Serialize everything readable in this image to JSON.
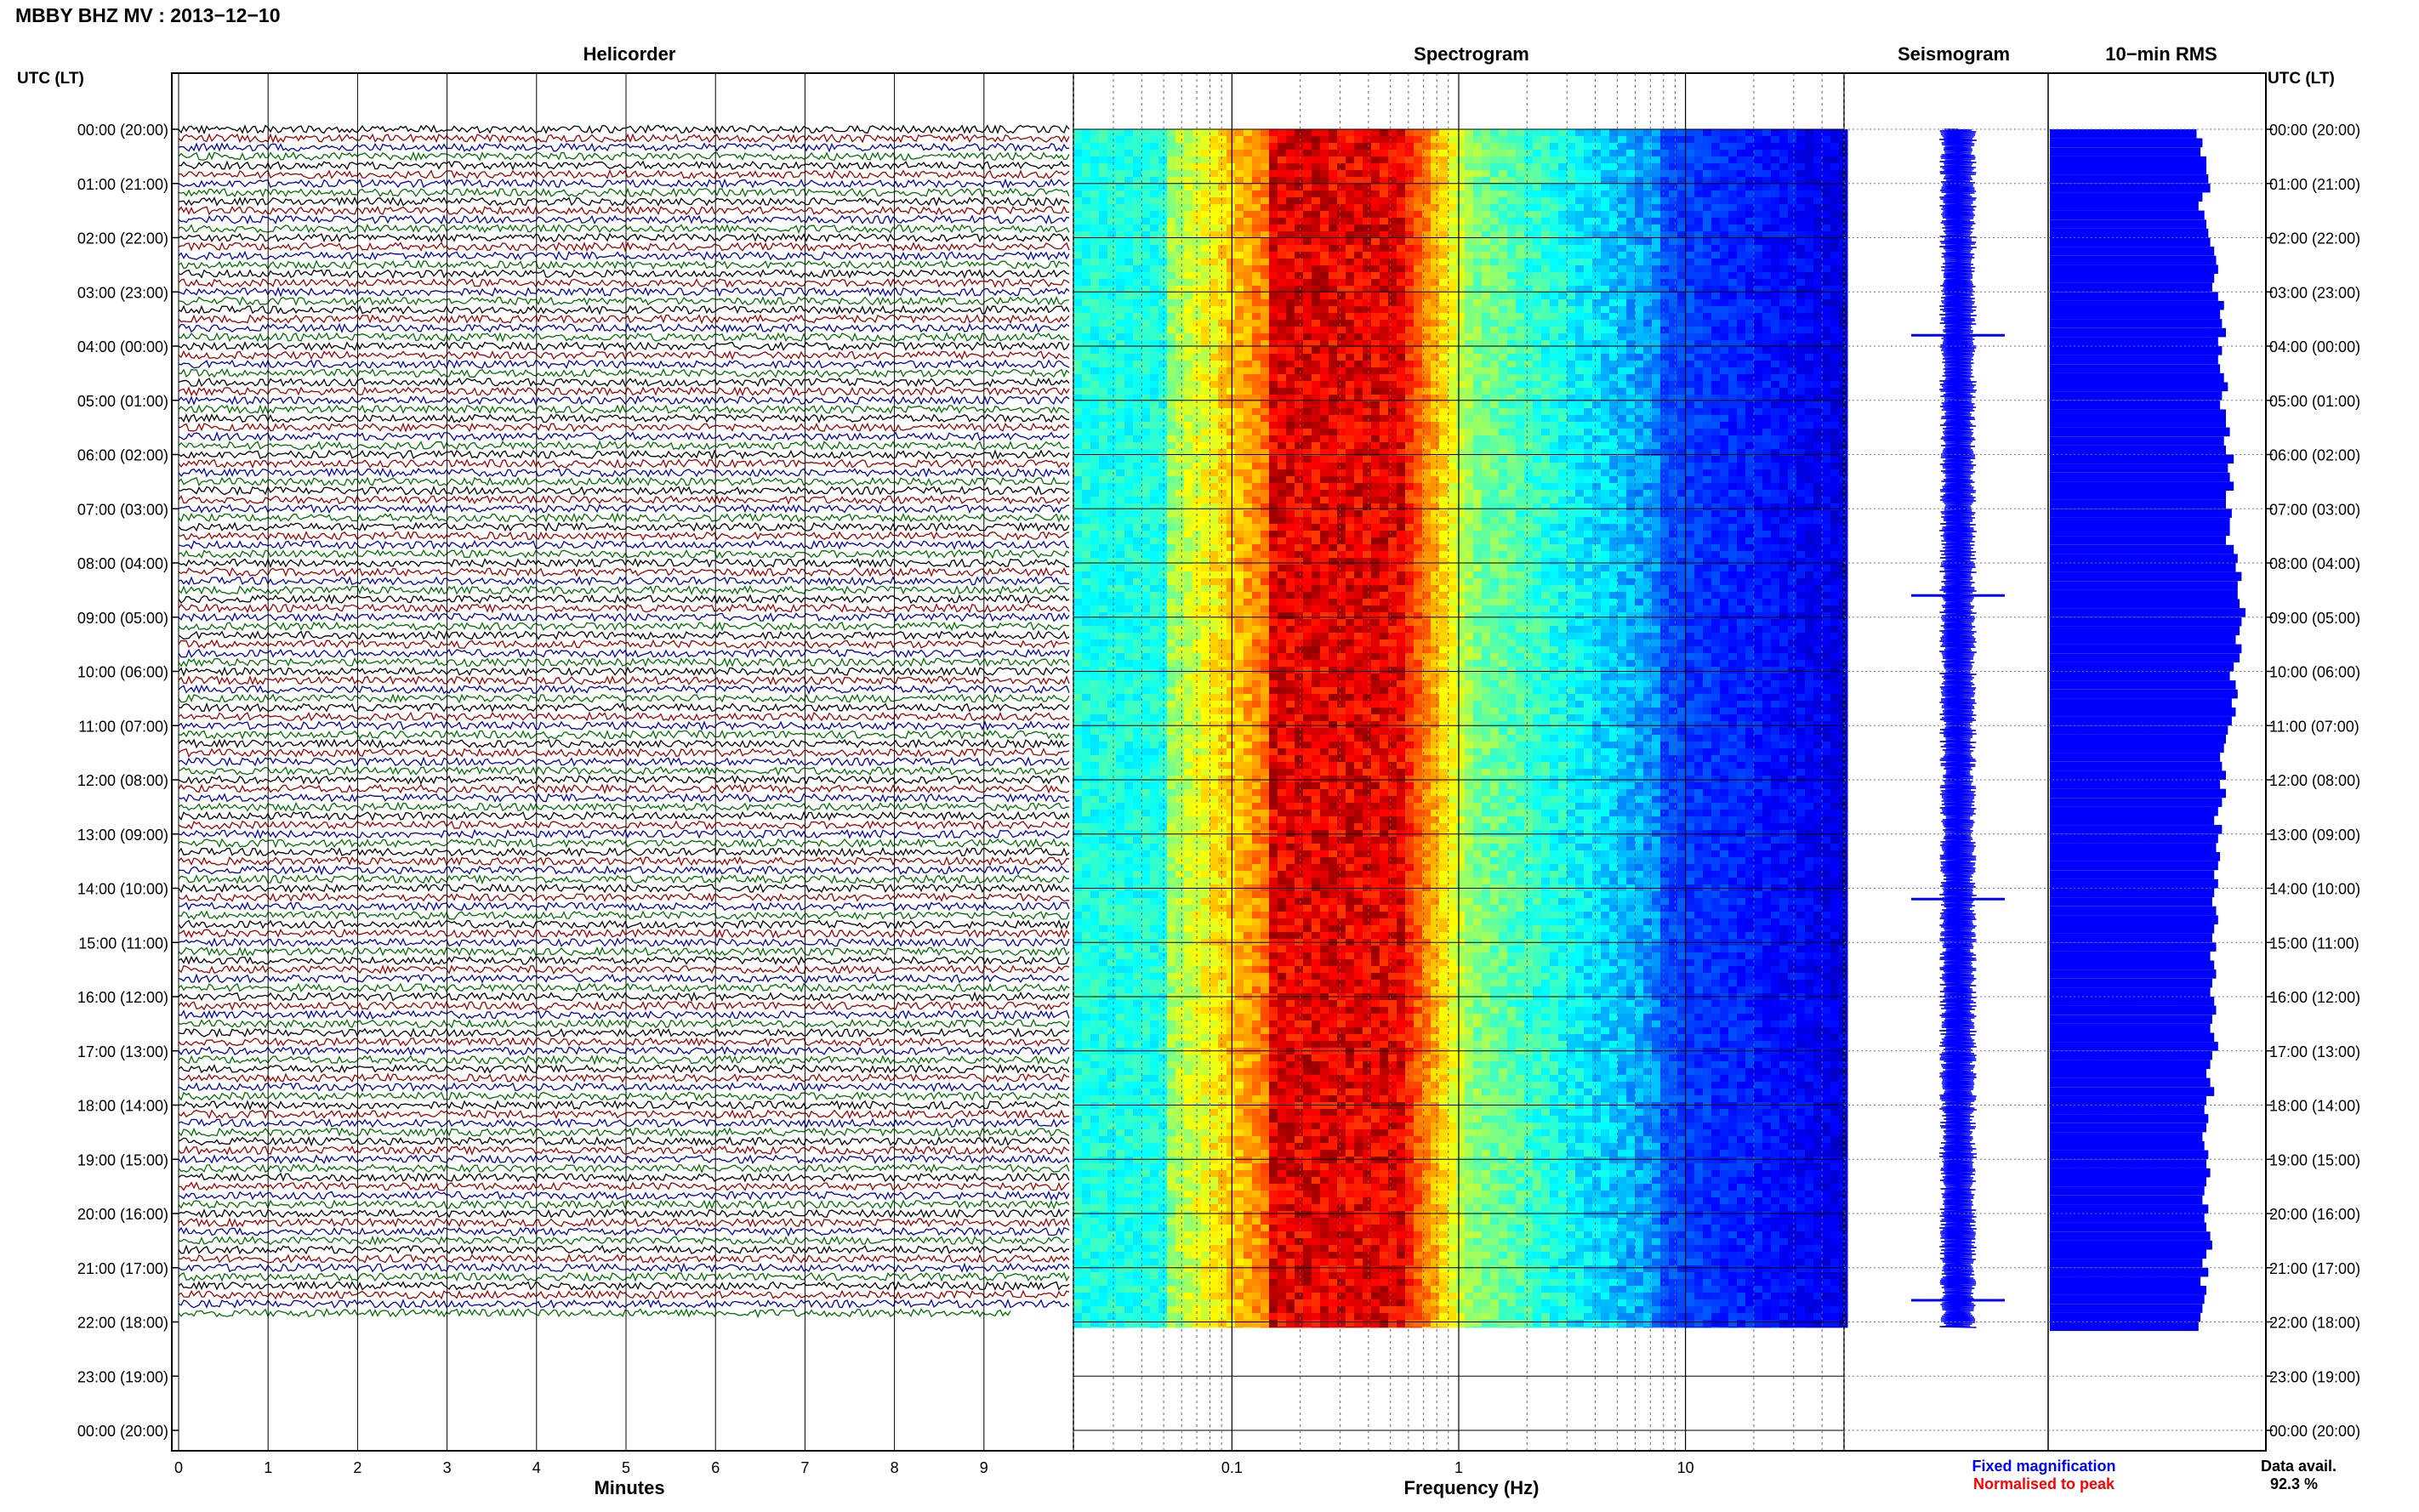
{
  "header": {
    "title": "MBBY BHZ MV : 2013−12−10",
    "left_axis_label": "UTC (LT)",
    "right_axis_label": "UTC (LT)"
  },
  "panels": {
    "helicorder": "Helicorder",
    "spectrogram": "Spectrogram",
    "seismogram": "Seismogram",
    "rms": "10−min RMS"
  },
  "footer": {
    "minutes_label": "Minutes",
    "frequency_label": "Frequency (Hz)",
    "legend_fixed": "Fixed magnification",
    "legend_normalised": "Normalised to peak",
    "data_avail_label": "Data avail.",
    "data_avail_value": "92.3 %"
  },
  "colors": {
    "fixed_magnification": "#0000ff",
    "normalised_to_peak": "#ff0000",
    "trace_colors": [
      "#000000",
      "#a00000",
      "#0000b0",
      "#007000"
    ],
    "rms_fill": "#0000ff",
    "seismogram_fill": "#0000ff"
  },
  "chart_data": {
    "type": "helicorder",
    "station": "MBBY",
    "channel": "BHZ",
    "network": "MV",
    "date": "2013-12-10",
    "time_ticks_utc": [
      "00:00",
      "01:00",
      "02:00",
      "03:00",
      "04:00",
      "05:00",
      "06:00",
      "07:00",
      "08:00",
      "09:00",
      "10:00",
      "11:00",
      "12:00",
      "13:00",
      "14:00",
      "15:00",
      "16:00",
      "17:00",
      "18:00",
      "19:00",
      "20:00",
      "21:00",
      "22:00",
      "23:00",
      "00:00"
    ],
    "time_ticks_lt": [
      "(20:00)",
      "(21:00)",
      "(22:00)",
      "(23:00)",
      "(00:00)",
      "(01:00)",
      "(02:00)",
      "(03:00)",
      "(04:00)",
      "(05:00)",
      "(06:00)",
      "(07:00)",
      "(08:00)",
      "(09:00)",
      "(10:00)",
      "(11:00)",
      "(12:00)",
      "(13:00)",
      "(14:00)",
      "(15:00)",
      "(16:00)",
      "(17:00)",
      "(18:00)",
      "(19:00)",
      "(20:00)"
    ],
    "helicorder": {
      "x_unit": "Minutes",
      "xlim": [
        0,
        10
      ],
      "x_ticks": [
        "0",
        "1",
        "2",
        "3",
        "4",
        "5",
        "6",
        "7",
        "8",
        "9"
      ],
      "lines_per_hour": 6,
      "data_end_hour": 22.0
    },
    "spectrogram": {
      "xlabel": "Frequency (Hz)",
      "x_scale": "log",
      "xlim": [
        0.02,
        50
      ],
      "x_ticks": [
        0.1,
        1,
        10
      ],
      "x_tick_labels": [
        "0.1",
        "1",
        "10"
      ],
      "peak_band_hz": [
        0.15,
        0.6
      ],
      "data_end_hour": 22.1
    },
    "seismogram": {
      "events_utc_hours": [
        3.8,
        8.6,
        14.2,
        21.6
      ]
    },
    "rms_10min": {
      "values_relative": [
        0.75,
        0.78,
        0.77,
        0.8,
        0.8,
        0.81,
        0.82,
        0.78,
        0.76,
        0.79,
        0.8,
        0.81,
        0.82,
        0.84,
        0.85,
        0.86,
        0.84,
        0.83,
        0.86,
        0.89,
        0.87,
        0.88,
        0.9,
        0.86,
        0.88,
        0.86,
        0.87,
        0.89,
        0.91,
        0.88,
        0.87,
        0.9,
        0.9,
        0.92,
        0.89,
        0.9,
        0.94,
        0.91,
        0.92,
        0.94,
        0.9,
        0.9,
        0.93,
        0.92,
        0.92,
        0.9,
        0.94,
        0.96,
        0.95,
        0.98,
        0.96,
        0.96,
        0.97,
        1.0,
        0.98,
        0.97,
        0.95,
        0.98,
        0.97,
        0.94,
        0.92,
        0.95,
        0.96,
        0.93,
        0.95,
        0.93,
        0.91,
        0.9,
        0.89,
        0.87,
        0.88,
        0.9,
        0.87,
        0.9,
        0.88,
        0.86,
        0.84,
        0.88,
        0.86,
        0.85,
        0.87,
        0.86,
        0.84,
        0.86,
        0.84,
        0.83,
        0.85,
        0.86,
        0.84,
        0.83,
        0.85,
        0.82,
        0.84,
        0.85,
        0.83,
        0.82,
        0.84,
        0.85,
        0.83,
        0.82,
        0.84,
        0.86,
        0.83,
        0.82,
        0.8,
        0.82,
        0.84,
        0.8,
        0.79,
        0.81,
        0.8,
        0.78,
        0.79,
        0.81,
        0.8,
        0.82,
        0.8,
        0.79,
        0.78,
        0.81,
        0.79,
        0.8,
        0.82,
        0.83,
        0.8,
        0.78,
        0.81,
        0.77,
        0.8,
        0.79,
        0.78,
        0.77,
        0.76
      ]
    },
    "data_availability_percent": 92.3
  }
}
